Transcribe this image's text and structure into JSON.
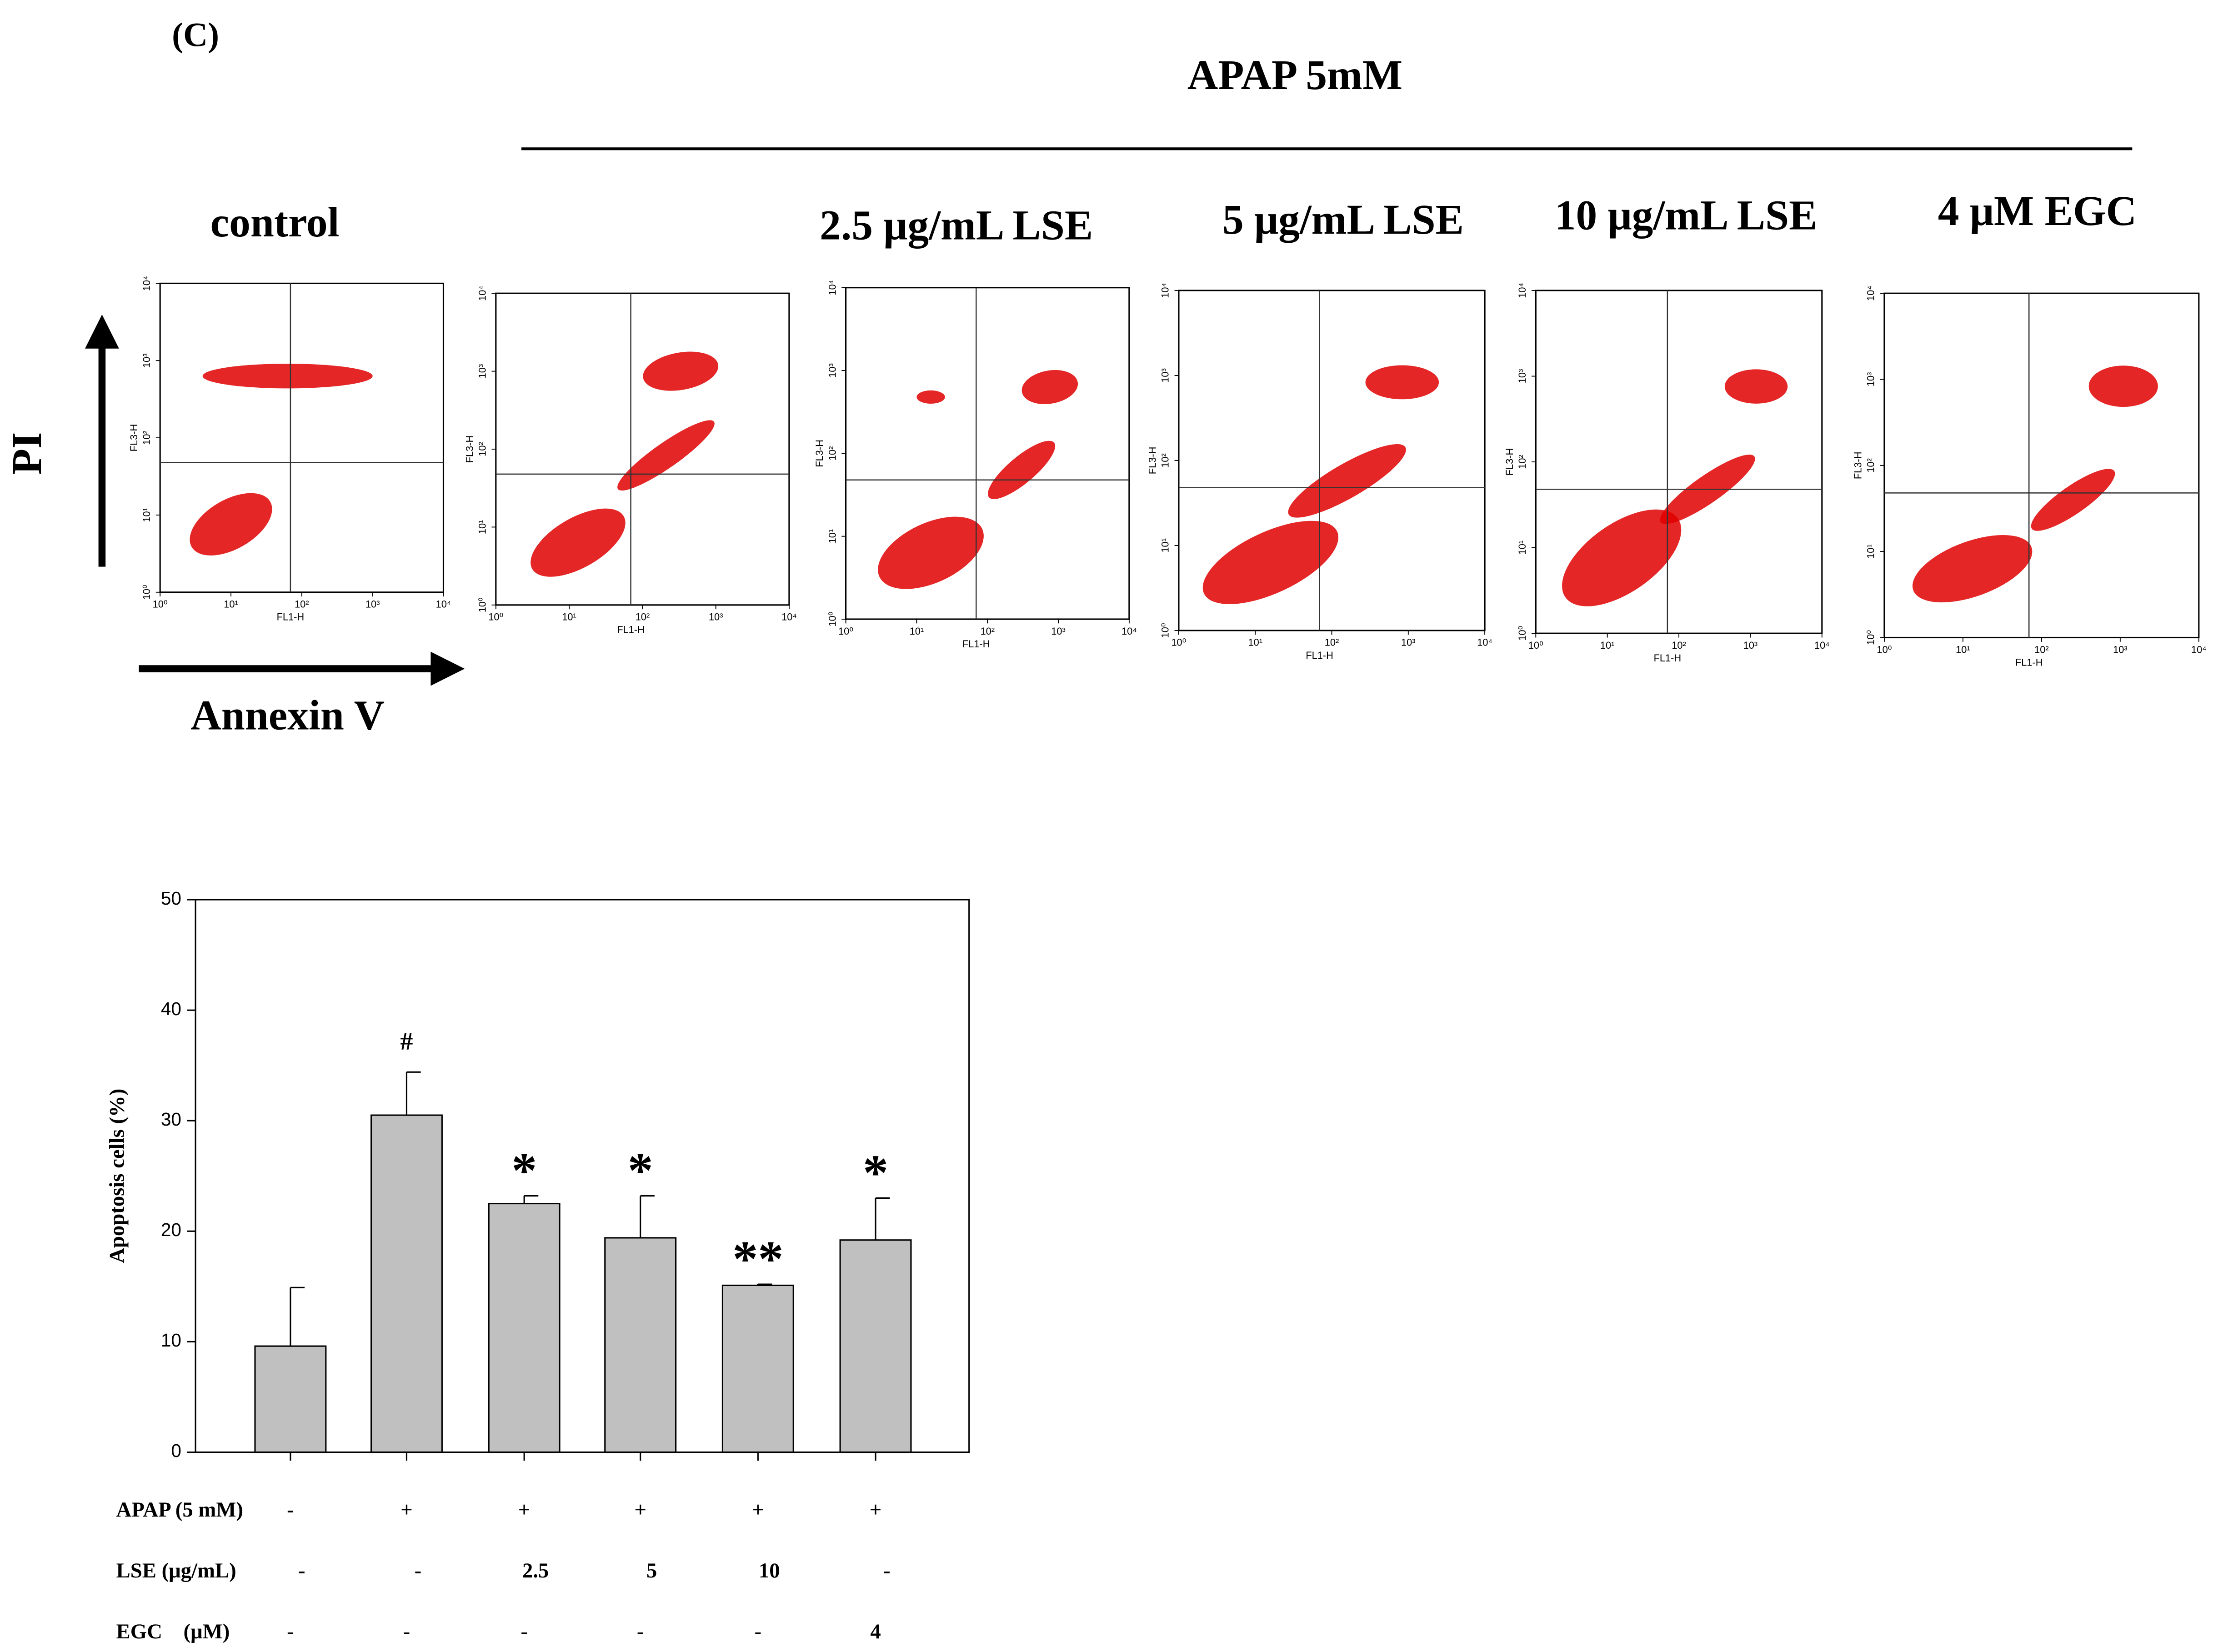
{
  "panel_label": "(C)",
  "treatment_header": "APAP 5mM",
  "axis_labels": {
    "y": "PI",
    "x": "Annexin V"
  },
  "flow_plots": {
    "x_axis_label": "FL1-H",
    "y_axis_label": "FL3-H",
    "ticks": [
      {
        "value": 0,
        "label": "10⁰"
      },
      {
        "value": 1,
        "label": "10¹"
      },
      {
        "value": 2,
        "label": "10²"
      },
      {
        "value": 3,
        "label": "10³"
      },
      {
        "value": 4,
        "label": "10⁴"
      }
    ],
    "lim": [
      0,
      4
    ],
    "titles": [
      "control",
      null,
      "2.5 μg/mL LSE",
      "5 μg/mL LSE",
      "10 μg/mL LSE",
      "4 μM EGC"
    ]
  },
  "chart_data": {
    "type": "bar",
    "ylabel": "Apoptosis cells (%)",
    "categories": [
      null,
      null,
      null,
      null,
      null,
      null
    ],
    "values": [
      9.6,
      30.5,
      22.5,
      19.4,
      15.1,
      19.2
    ],
    "errors": [
      5.3,
      3.9,
      0.7,
      3.8,
      0.1,
      3.8
    ],
    "annotations": [
      null,
      "#",
      "*",
      "*",
      "**",
      "*"
    ],
    "color": "#c0c0c0",
    "ylim": [
      0,
      50
    ],
    "yticks": [
      0,
      10,
      20,
      30,
      40,
      50
    ]
  },
  "treatment_table": {
    "rows": [
      [
        "APAP (5 mM)",
        "-",
        "+",
        "+",
        "+",
        "+",
        "+"
      ],
      [
        "LSE (μg/mL)",
        "-",
        "-",
        "2.5",
        "5",
        "10",
        "-"
      ],
      [
        "EGC    (μM)",
        "-",
        "-",
        "-",
        "-",
        "-",
        "4"
      ]
    ]
  }
}
